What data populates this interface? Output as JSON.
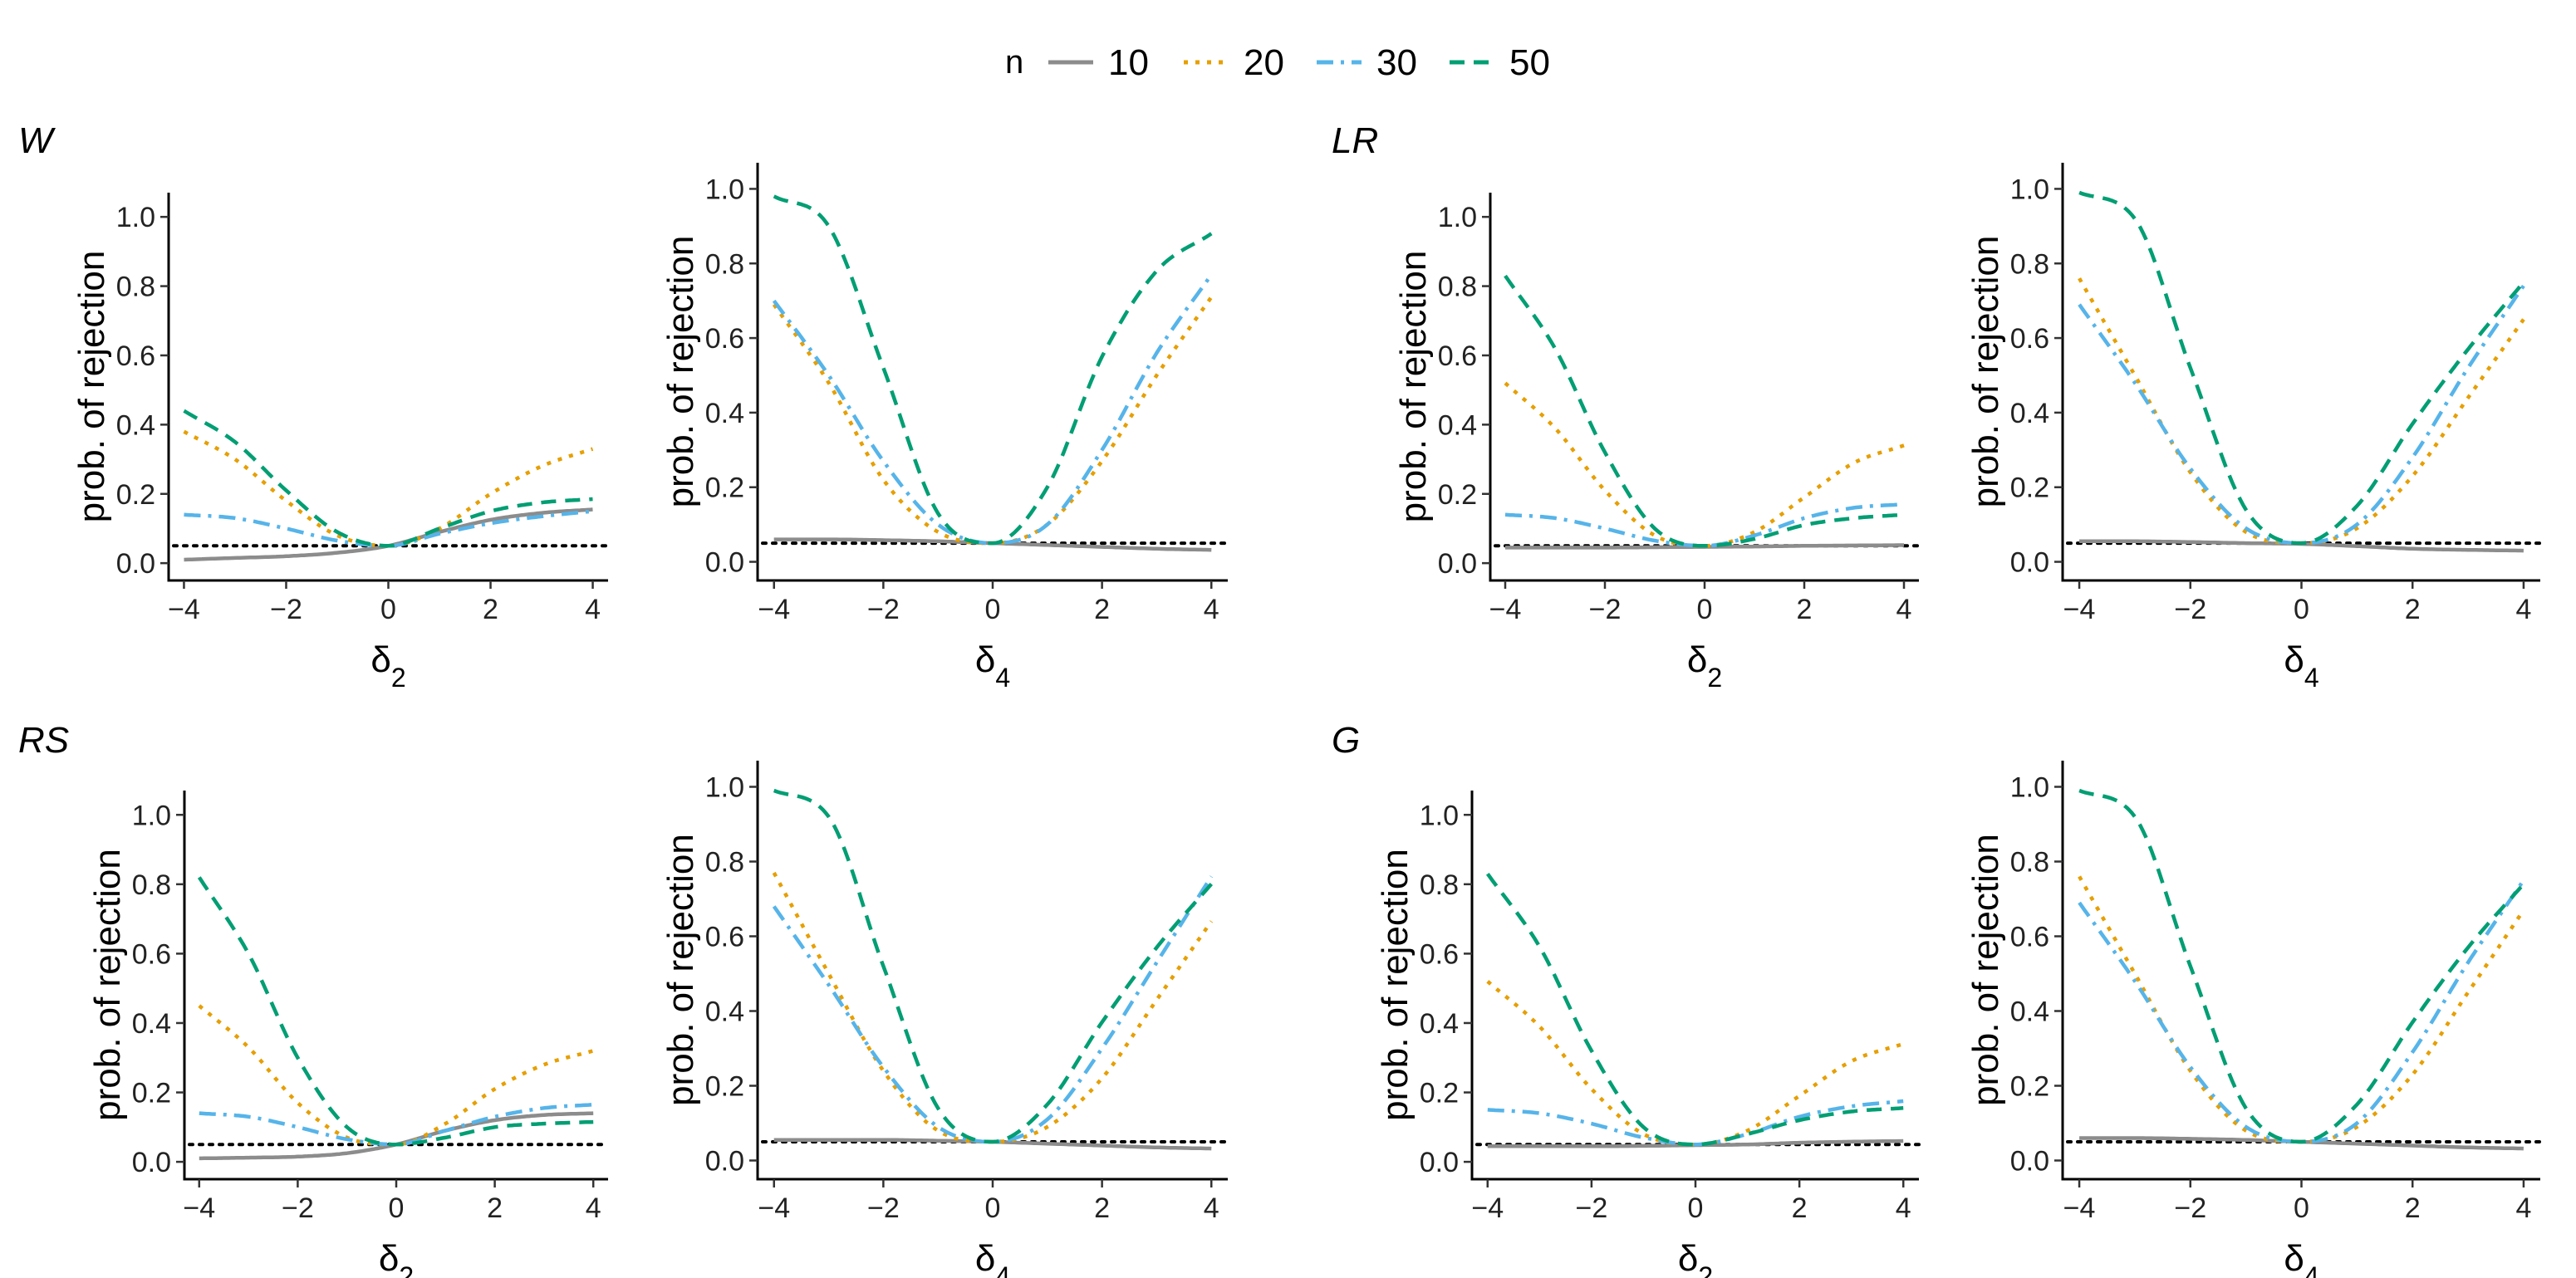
{
  "legend": {
    "title": "n",
    "entries": [
      {
        "label": "10",
        "color": "#8c8c8c",
        "dash": "solid"
      },
      {
        "label": "20",
        "color": "#e69f00",
        "dash": "dotted"
      },
      {
        "label": "30",
        "color": "#56b4e9",
        "dash": "dashdot"
      },
      {
        "label": "50",
        "color": "#009e73",
        "dash": "dashed"
      }
    ]
  },
  "row_labels": [
    "W",
    "LR",
    "RS",
    "G"
  ],
  "reference_line": {
    "y": 0.05,
    "style": "dotted",
    "color": "#000000"
  },
  "chart_data": [
    {
      "type": "line",
      "panel": "W-delta2",
      "test": "W",
      "xlabel": "δ2",
      "ylabel": "prob. of rejection",
      "xlim": [
        -4.3,
        4.3
      ],
      "ylim": [
        -0.05,
        1.07
      ],
      "xticks": [
        -4,
        -2,
        0,
        2,
        4
      ],
      "yticks": [
        0.0,
        0.2,
        0.4,
        0.6,
        0.8,
        1.0
      ],
      "ytick_labels": [
        "0.0",
        "0.2",
        "0.4",
        "0.6",
        "0.8",
        "1.0"
      ],
      "x": [
        -4,
        -3,
        -2,
        -1,
        0,
        1,
        2,
        3,
        4
      ],
      "series": [
        {
          "name": "10",
          "values": [
            0.01,
            0.015,
            0.02,
            0.03,
            0.05,
            0.09,
            0.125,
            0.145,
            0.155
          ]
        },
        {
          "name": "20",
          "values": [
            0.38,
            0.3,
            0.18,
            0.08,
            0.05,
            0.1,
            0.2,
            0.28,
            0.33
          ]
        },
        {
          "name": "30",
          "values": [
            0.14,
            0.13,
            0.1,
            0.065,
            0.05,
            0.085,
            0.115,
            0.135,
            0.15
          ]
        },
        {
          "name": "50",
          "values": [
            0.44,
            0.35,
            0.21,
            0.09,
            0.05,
            0.1,
            0.15,
            0.175,
            0.185
          ]
        }
      ]
    },
    {
      "type": "line",
      "panel": "W-delta4",
      "test": "W",
      "xlabel": "δ4",
      "ylabel": "prob. of rejection",
      "xlim": [
        -4.3,
        4.3
      ],
      "ylim": [
        -0.05,
        1.07
      ],
      "xticks": [
        -4,
        -2,
        0,
        2,
        4
      ],
      "yticks": [
        0.0,
        0.2,
        0.4,
        0.6,
        0.8,
        1.0
      ],
      "ytick_labels": [
        "0.0",
        "0.2",
        "0.4",
        "0.6",
        "0.8",
        "1.0"
      ],
      "x": [
        -4,
        -3,
        -2,
        -1,
        0,
        1,
        2,
        3,
        4
      ],
      "series": [
        {
          "name": "10",
          "values": [
            0.06,
            0.06,
            0.058,
            0.055,
            0.05,
            0.045,
            0.04,
            0.035,
            0.032
          ]
        },
        {
          "name": "20",
          "values": [
            0.69,
            0.48,
            0.22,
            0.08,
            0.05,
            0.1,
            0.27,
            0.5,
            0.71
          ]
        },
        {
          "name": "30",
          "values": [
            0.7,
            0.5,
            0.27,
            0.1,
            0.05,
            0.1,
            0.3,
            0.56,
            0.77
          ]
        },
        {
          "name": "50",
          "values": [
            0.98,
            0.9,
            0.52,
            0.13,
            0.05,
            0.2,
            0.55,
            0.78,
            0.88
          ]
        }
      ]
    },
    {
      "type": "line",
      "panel": "LR-delta2",
      "test": "LR",
      "xlabel": "δ2",
      "ylabel": "prob. of rejection",
      "xlim": [
        -4.3,
        4.3
      ],
      "ylim": [
        -0.05,
        1.07
      ],
      "xticks": [
        -4,
        -2,
        0,
        2,
        4
      ],
      "yticks": [
        0.0,
        0.2,
        0.4,
        0.6,
        0.8,
        1.0
      ],
      "ytick_labels": [
        "0.0",
        "0.2",
        "0.4",
        "0.6",
        "0.8",
        "1.0"
      ],
      "x": [
        -4,
        -3,
        -2,
        -1,
        0,
        1,
        2,
        3,
        4
      ],
      "series": [
        {
          "name": "10",
          "values": [
            0.045,
            0.045,
            0.045,
            0.046,
            0.047,
            0.048,
            0.05,
            0.051,
            0.052
          ]
        },
        {
          "name": "20",
          "values": [
            0.52,
            0.39,
            0.21,
            0.08,
            0.05,
            0.09,
            0.19,
            0.29,
            0.34
          ]
        },
        {
          "name": "30",
          "values": [
            0.14,
            0.13,
            0.1,
            0.065,
            0.05,
            0.08,
            0.13,
            0.16,
            0.17
          ]
        },
        {
          "name": "50",
          "values": [
            0.83,
            0.62,
            0.32,
            0.1,
            0.05,
            0.07,
            0.11,
            0.13,
            0.14
          ]
        }
      ]
    },
    {
      "type": "line",
      "panel": "LR-delta4",
      "test": "LR",
      "xlabel": "δ4",
      "ylabel": "prob. of rejection",
      "xlim": [
        -4.3,
        4.3
      ],
      "ylim": [
        -0.05,
        1.07
      ],
      "xticks": [
        -4,
        -2,
        0,
        2,
        4
      ],
      "yticks": [
        0.0,
        0.2,
        0.4,
        0.6,
        0.8,
        1.0
      ],
      "ytick_labels": [
        "0.0",
        "0.2",
        "0.4",
        "0.6",
        "0.8",
        "1.0"
      ],
      "x": [
        -4,
        -3,
        -2,
        -1,
        0,
        1,
        2,
        3,
        4
      ],
      "series": [
        {
          "name": "10",
          "values": [
            0.055,
            0.055,
            0.053,
            0.05,
            0.048,
            0.042,
            0.035,
            0.032,
            0.03
          ]
        },
        {
          "name": "20",
          "values": [
            0.76,
            0.5,
            0.24,
            0.08,
            0.05,
            0.09,
            0.23,
            0.44,
            0.65
          ]
        },
        {
          "name": "30",
          "values": [
            0.69,
            0.48,
            0.25,
            0.09,
            0.05,
            0.1,
            0.28,
            0.52,
            0.74
          ]
        },
        {
          "name": "50",
          "values": [
            0.99,
            0.92,
            0.52,
            0.14,
            0.05,
            0.15,
            0.37,
            0.57,
            0.75
          ]
        }
      ]
    },
    {
      "type": "line",
      "panel": "RS-delta2",
      "test": "RS",
      "xlabel": "δ2",
      "ylabel": "prob. of rejection",
      "xlim": [
        -4.3,
        4.3
      ],
      "ylim": [
        -0.05,
        1.07
      ],
      "xticks": [
        -4,
        -2,
        0,
        2,
        4
      ],
      "yticks": [
        0.0,
        0.2,
        0.4,
        0.6,
        0.8,
        1.0
      ],
      "ytick_labels": [
        "0.0",
        "0.2",
        "0.4",
        "0.6",
        "0.8",
        "1.0"
      ],
      "x": [
        -4,
        -3,
        -2,
        -1,
        0,
        1,
        2,
        3,
        4
      ],
      "series": [
        {
          "name": "10",
          "values": [
            0.01,
            0.012,
            0.015,
            0.025,
            0.05,
            0.09,
            0.12,
            0.135,
            0.14
          ]
        },
        {
          "name": "20",
          "values": [
            0.45,
            0.33,
            0.17,
            0.07,
            0.05,
            0.11,
            0.21,
            0.28,
            0.32
          ]
        },
        {
          "name": "30",
          "values": [
            0.14,
            0.13,
            0.1,
            0.065,
            0.05,
            0.09,
            0.13,
            0.155,
            0.165
          ]
        },
        {
          "name": "50",
          "values": [
            0.82,
            0.6,
            0.3,
            0.1,
            0.05,
            0.07,
            0.1,
            0.11,
            0.115
          ]
        }
      ]
    },
    {
      "type": "line",
      "panel": "RS-delta4",
      "test": "RS",
      "xlabel": "δ4",
      "ylabel": "prob. of rejection",
      "xlim": [
        -4.3,
        4.3
      ],
      "ylim": [
        -0.05,
        1.07
      ],
      "xticks": [
        -4,
        -2,
        0,
        2,
        4
      ],
      "yticks": [
        0.0,
        0.2,
        0.4,
        0.6,
        0.8,
        1.0
      ],
      "ytick_labels": [
        "0.0",
        "0.2",
        "0.4",
        "0.6",
        "0.8",
        "1.0"
      ],
      "x": [
        -4,
        -3,
        -2,
        -1,
        0,
        1,
        2,
        3,
        4
      ],
      "series": [
        {
          "name": "10",
          "values": [
            0.055,
            0.055,
            0.055,
            0.053,
            0.05,
            0.045,
            0.04,
            0.035,
            0.032
          ]
        },
        {
          "name": "20",
          "values": [
            0.77,
            0.5,
            0.24,
            0.08,
            0.05,
            0.09,
            0.22,
            0.43,
            0.64
          ]
        },
        {
          "name": "30",
          "values": [
            0.68,
            0.47,
            0.25,
            0.09,
            0.05,
            0.11,
            0.3,
            0.53,
            0.76
          ]
        },
        {
          "name": "50",
          "values": [
            0.99,
            0.92,
            0.52,
            0.14,
            0.05,
            0.15,
            0.37,
            0.57,
            0.74
          ]
        }
      ]
    },
    {
      "type": "line",
      "panel": "G-delta2",
      "test": "G",
      "xlabel": "δ2",
      "ylabel": "prob. of rejection",
      "xlim": [
        -4.3,
        4.3
      ],
      "ylim": [
        -0.05,
        1.07
      ],
      "xticks": [
        -4,
        -2,
        0,
        2,
        4
      ],
      "yticks": [
        0.0,
        0.2,
        0.4,
        0.6,
        0.8,
        1.0
      ],
      "ytick_labels": [
        "0.0",
        "0.2",
        "0.4",
        "0.6",
        "0.8",
        "1.0"
      ],
      "x": [
        -4,
        -3,
        -2,
        -1,
        0,
        1,
        2,
        3,
        4
      ],
      "series": [
        {
          "name": "10",
          "values": [
            0.045,
            0.045,
            0.045,
            0.046,
            0.048,
            0.05,
            0.055,
            0.058,
            0.06
          ]
        },
        {
          "name": "20",
          "values": [
            0.52,
            0.39,
            0.21,
            0.08,
            0.05,
            0.09,
            0.19,
            0.29,
            0.34
          ]
        },
        {
          "name": "30",
          "values": [
            0.15,
            0.14,
            0.11,
            0.07,
            0.05,
            0.08,
            0.13,
            0.16,
            0.175
          ]
        },
        {
          "name": "50",
          "values": [
            0.83,
            0.62,
            0.32,
            0.1,
            0.05,
            0.08,
            0.12,
            0.145,
            0.155
          ]
        }
      ]
    },
    {
      "type": "line",
      "panel": "G-delta4",
      "test": "G",
      "xlabel": "δ4",
      "ylabel": "prob. of rejection",
      "xlim": [
        -4.3,
        4.3
      ],
      "ylim": [
        -0.05,
        1.07
      ],
      "xticks": [
        -4,
        -2,
        0,
        2,
        4
      ],
      "yticks": [
        0.0,
        0.2,
        0.4,
        0.6,
        0.8,
        1.0
      ],
      "ytick_labels": [
        "0.0",
        "0.2",
        "0.4",
        "0.6",
        "0.8",
        "1.0"
      ],
      "x": [
        -4,
        -3,
        -2,
        -1,
        0,
        1,
        2,
        3,
        4
      ],
      "series": [
        {
          "name": "10",
          "values": [
            0.06,
            0.06,
            0.058,
            0.055,
            0.05,
            0.045,
            0.04,
            0.035,
            0.032
          ]
        },
        {
          "name": "20",
          "values": [
            0.76,
            0.5,
            0.24,
            0.08,
            0.05,
            0.09,
            0.23,
            0.45,
            0.67
          ]
        },
        {
          "name": "30",
          "values": [
            0.69,
            0.48,
            0.25,
            0.09,
            0.05,
            0.1,
            0.29,
            0.53,
            0.75
          ]
        },
        {
          "name": "50",
          "values": [
            0.99,
            0.92,
            0.52,
            0.14,
            0.05,
            0.15,
            0.37,
            0.57,
            0.74
          ]
        }
      ]
    }
  ]
}
